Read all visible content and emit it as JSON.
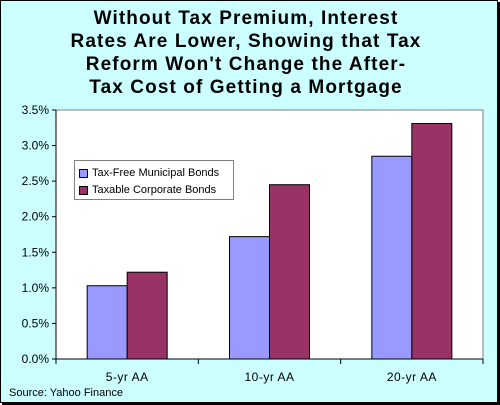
{
  "chart_data": {
    "type": "bar",
    "title": "Without Tax Premium, Interest Rates Are Lower, Showing that Tax Reform Won't Change the After-Tax Cost of Getting a Mortgage",
    "title_lines": [
      "Without Tax Premium, Interest",
      "Rates Are Lower, Showing that Tax",
      "Reform Won't Change the After-",
      "Tax Cost of Getting a Mortgage"
    ],
    "categories": [
      "5-yr AA",
      "10-yr AA",
      "20-yr AA"
    ],
    "series": [
      {
        "name": "Tax-Free Municipal Bonds",
        "values": [
          1.03,
          1.72,
          2.85
        ],
        "color": "#9999ff"
      },
      {
        "name": "Taxable Corporate Bonds",
        "values": [
          1.22,
          2.45,
          3.31
        ],
        "color": "#993366"
      }
    ],
    "ylim": [
      0,
      3.5
    ],
    "yticks": [
      0,
      0.5,
      1.0,
      1.5,
      2.0,
      2.5,
      3.0,
      3.5
    ],
    "ytick_labels": [
      "0.0%",
      "0.5%",
      "1.0%",
      "1.5%",
      "2.0%",
      "2.5%",
      "3.0%",
      "3.5%"
    ],
    "xlabel": "",
    "ylabel": "",
    "grid": false,
    "legend_position": "upper-left",
    "plot_background": "#ffffff",
    "chart_background": "#ccffff",
    "source": "Source: Yahoo Finance"
  }
}
